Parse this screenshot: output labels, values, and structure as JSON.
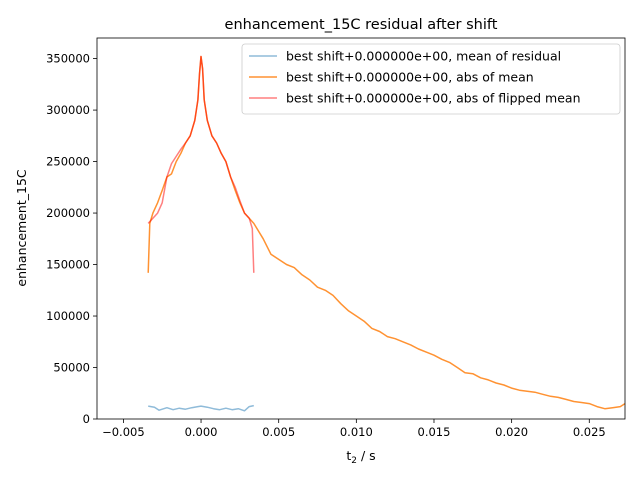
{
  "chart_data": {
    "type": "line",
    "title": "enhancement_15C residual after shift",
    "xlabel_main": "t",
    "xlabel_sub": "2",
    "xlabel_rest": " / s",
    "ylabel": "enhancement_15C",
    "xlim": [
      -0.0067,
      0.0273
    ],
    "ylim": [
      0,
      370000
    ],
    "xticks": [
      -0.005,
      0.0,
      0.005,
      0.01,
      0.015,
      0.02,
      0.025
    ],
    "xtick_labels": [
      "−0.005",
      "0.000",
      "0.005",
      "0.010",
      "0.015",
      "0.020",
      "0.025"
    ],
    "yticks": [
      0,
      50000,
      100000,
      150000,
      200000,
      250000,
      300000,
      350000
    ],
    "ytick_labels": [
      "0",
      "50000",
      "100000",
      "150000",
      "200000",
      "250000",
      "300000",
      "350000"
    ],
    "legend_position": "upper right",
    "series": [
      {
        "name": "best shift+0.000000e+00, mean of residual",
        "color": "#1f77b4",
        "opacity": 0.5,
        "x": [
          -0.0034,
          -0.003,
          -0.0027,
          -0.0022,
          -0.0018,
          -0.0014,
          -0.001,
          -0.0006,
          -0.0002,
          0.0,
          0.0004,
          0.0008,
          0.0012,
          0.0016,
          0.002,
          0.0024,
          0.0028,
          0.0031,
          0.0034
        ],
        "y": [
          12500,
          11500,
          8500,
          11000,
          9000,
          10500,
          9500,
          11000,
          12000,
          12500,
          11500,
          10000,
          9000,
          10500,
          9000,
          10000,
          8000,
          12000,
          13000
        ]
      },
      {
        "name": "best shift+0.000000e+00, abs of mean",
        "color": "#ff7f0e",
        "opacity": 0.85,
        "x": [
          -0.0034,
          -0.0033,
          -0.0031,
          -0.0028,
          -0.0025,
          -0.0022,
          -0.0019,
          -0.0016,
          -0.0013,
          -0.001,
          -0.0007,
          -0.0004,
          -0.0002,
          -0.0001,
          0.0,
          0.0001,
          0.0002,
          0.0004,
          0.0007,
          0.001,
          0.0013,
          0.0016,
          0.0019,
          0.0022,
          0.0025,
          0.0028,
          0.0031,
          0.0034,
          0.004,
          0.0045,
          0.005,
          0.0055,
          0.006,
          0.0065,
          0.007,
          0.0075,
          0.008,
          0.0085,
          0.009,
          0.0095,
          0.01,
          0.0105,
          0.011,
          0.0115,
          0.012,
          0.0125,
          0.013,
          0.0135,
          0.014,
          0.0145,
          0.015,
          0.0155,
          0.016,
          0.0165,
          0.017,
          0.0175,
          0.018,
          0.0185,
          0.019,
          0.0195,
          0.02,
          0.0205,
          0.021,
          0.0215,
          0.022,
          0.0225,
          0.023,
          0.0235,
          0.024,
          0.0245,
          0.025,
          0.0255,
          0.026,
          0.0265,
          0.027,
          0.0273
        ],
        "y": [
          142000,
          190000,
          200000,
          210000,
          222000,
          235000,
          238000,
          250000,
          258000,
          268000,
          275000,
          290000,
          310000,
          335000,
          352000,
          340000,
          310000,
          290000,
          275000,
          268000,
          258000,
          250000,
          235000,
          222000,
          210000,
          200000,
          195000,
          190000,
          175000,
          160000,
          155000,
          150000,
          147000,
          140000,
          135000,
          128000,
          125000,
          120000,
          112000,
          105000,
          100000,
          95000,
          88000,
          85000,
          80000,
          78000,
          75000,
          72000,
          68000,
          65000,
          62000,
          58000,
          55000,
          50000,
          45000,
          44000,
          40000,
          38000,
          35000,
          33000,
          30000,
          28000,
          27000,
          26000,
          24000,
          22000,
          21000,
          19000,
          17000,
          16000,
          15000,
          12000,
          10000,
          11000,
          12000,
          15000
        ]
      },
      {
        "name": "best shift+0.000000e+00, abs of flipped mean",
        "color": "#ff0000",
        "opacity": 0.5,
        "x": [
          -0.0034,
          -0.0031,
          -0.0028,
          -0.0025,
          -0.0022,
          -0.0019,
          -0.0016,
          -0.0013,
          -0.001,
          -0.0007,
          -0.0004,
          -0.0002,
          -0.0001,
          0.0,
          0.0001,
          0.0002,
          0.0004,
          0.0007,
          0.001,
          0.0013,
          0.0016,
          0.0019,
          0.0022,
          0.0025,
          0.0028,
          0.0031,
          0.0033,
          0.0034
        ],
        "y": [
          190000,
          195000,
          200000,
          210000,
          235000,
          248000,
          255000,
          262000,
          268000,
          275000,
          290000,
          310000,
          335000,
          352000,
          340000,
          310000,
          290000,
          275000,
          268000,
          258000,
          250000,
          235000,
          225000,
          212000,
          200000,
          195000,
          185000,
          142000
        ]
      }
    ]
  }
}
